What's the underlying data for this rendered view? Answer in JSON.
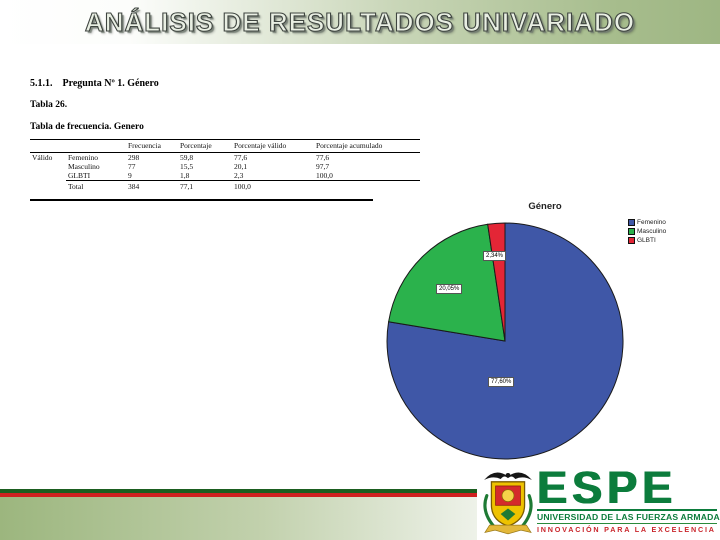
{
  "banner": {
    "title": "ANÁLISIS DE RESULTADOS UNIVARIADO"
  },
  "document": {
    "section_number": "5.1.1.",
    "section_title": "Pregunta Nº 1. Género",
    "table_number": "Tabla 26.",
    "table_caption": "Tabla de frecuencia. Genero"
  },
  "freq_table": {
    "headers": [
      "",
      "",
      "Frecuencia",
      "Porcentaje",
      "Porcentaje válido",
      "Porcentaje acumulado"
    ],
    "rows": [
      {
        "cells": [
          "Válido",
          "Femenino",
          "298",
          "59,8",
          "77,6",
          "77,6"
        ]
      },
      {
        "cells": [
          "",
          "Masculino",
          "77",
          "15,5",
          "20,1",
          "97,7"
        ]
      },
      {
        "cells": [
          "",
          "GLBTI",
          "9",
          "1,8",
          "2,3",
          "100,0"
        ]
      },
      {
        "cells": [
          "",
          "Total",
          "384",
          "77,1",
          "100,0",
          ""
        ]
      }
    ]
  },
  "chart_data": {
    "type": "pie",
    "title": "Género",
    "categories": [
      "Femenino",
      "Masculino",
      "GLBTI"
    ],
    "values": [
      77.6,
      20.05,
      2.34
    ],
    "value_labels": [
      "77,60%",
      "20,05%",
      "2,34%"
    ],
    "colors": [
      "#3f57a7",
      "#2bb24c",
      "#e32636"
    ],
    "legend_position": "right",
    "start_angle_deg": 0,
    "direction": "clockwise"
  },
  "logo": {
    "acronym": "ESPE",
    "university": "UNIVERSIDAD DE LAS FUERZAS ARMADAS",
    "tagline": "INNOVACIÓN PARA LA EXCELENCIA",
    "brand_green": "#0c7c3c",
    "brand_red": "#c9252b"
  },
  "footer": {
    "stripe_green": "#1b5e20",
    "stripe_red": "#cf2020"
  }
}
